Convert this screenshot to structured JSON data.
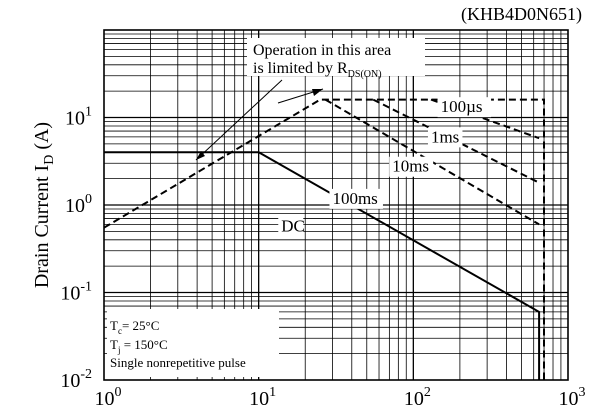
{
  "part_number": "(KHB4D0N651)",
  "chart_data": {
    "type": "line",
    "title": "",
    "xlabel": "",
    "ylabel": "Drain Current I_D (A)",
    "ylabel_main": "Drain Current I",
    "ylabel_sub": "D",
    "ylabel_unit": " (A)",
    "xscale": "log",
    "yscale": "log",
    "xlim": [
      1,
      1000
    ],
    "ylim": [
      0.01,
      100
    ],
    "grid": true,
    "x_ticks": [
      {
        "base": "10",
        "exp": "0"
      },
      {
        "base": "10",
        "exp": "1"
      },
      {
        "base": "10",
        "exp": "2"
      },
      {
        "base": "10",
        "exp": "3"
      }
    ],
    "y_ticks": [
      {
        "base": "10",
        "exp": "-2"
      },
      {
        "base": "10",
        "exp": "-1"
      },
      {
        "base": "10",
        "exp": "0"
      },
      {
        "base": "10",
        "exp": "1"
      }
    ],
    "series": [
      {
        "name": "DC",
        "style": "solid",
        "points": [
          [
            1,
            4
          ],
          [
            10,
            4
          ],
          [
            650,
            0.06
          ],
          [
            650,
            0.01
          ]
        ]
      },
      {
        "name": "100ms",
        "style": "dashed",
        "points": [
          [
            27,
            16
          ],
          [
            650,
            0.6
          ]
        ]
      },
      {
        "name": "10ms",
        "style": "dashed",
        "points": [
          [
            55,
            16
          ],
          [
            650,
            1.8
          ]
        ]
      },
      {
        "name": "1ms",
        "style": "dashed",
        "points": [
          [
            130,
            16
          ],
          [
            650,
            5.8
          ]
        ]
      },
      {
        "name": "100µs",
        "style": "dashed",
        "points": [
          [
            1,
            0.55
          ],
          [
            25,
            16
          ],
          [
            700,
            16
          ],
          [
            700,
            0.01
          ]
        ]
      }
    ],
    "curve_labels": [
      {
        "text": "100µs",
        "x": 150,
        "y": 11.5
      },
      {
        "text": "1ms",
        "x": 130,
        "y": 5.2
      },
      {
        "text": "10ms",
        "x": 73,
        "y": 2.4
      },
      {
        "text": "100ms",
        "x": 30,
        "y": 1.03
      },
      {
        "text": "DC",
        "x": 14,
        "y": 0.5
      }
    ],
    "annotation": {
      "line1": "Operation in this area",
      "line2_prefix": "is limited by R",
      "line2_sub": "DS(ON)"
    },
    "conditions": [
      {
        "main": "T",
        "sub": "c",
        "rest": "= 25°C"
      },
      {
        "main": "T",
        "sub": "j",
        "rest": " = 150°C"
      },
      {
        "main": "Single nonrepetitive pulse",
        "sub": "",
        "rest": ""
      }
    ]
  }
}
